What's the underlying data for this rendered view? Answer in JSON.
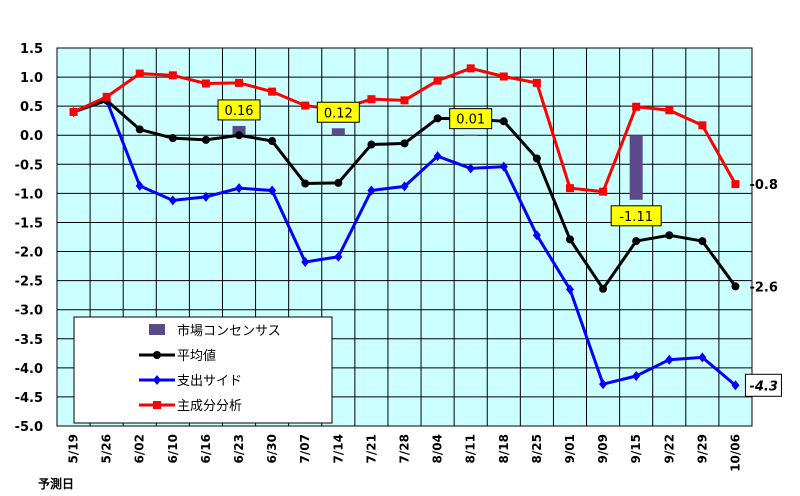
{
  "chart_data": {
    "type": "line",
    "categories": [
      "5/19",
      "5/26",
      "6/02",
      "6/10",
      "6/16",
      "6/23",
      "6/30",
      "7/07",
      "7/14",
      "7/21",
      "7/28",
      "8/04",
      "8/11",
      "8/18",
      "8/25",
      "9/01",
      "9/09",
      "9/15",
      "9/22",
      "9/29",
      "10/06"
    ],
    "xlabel": "予測日",
    "ylim": [
      -5.0,
      1.5
    ],
    "yticks": [
      "1.5",
      "1.0",
      "0.5",
      "0.0",
      "-0.5",
      "-1.0",
      "-1.5",
      "-2.0",
      "-2.5",
      "-3.0",
      "-3.5",
      "-4.0",
      "-4.5",
      "-5.0"
    ],
    "grid": true,
    "legend_position": "bottom-left",
    "colors": {
      "plot_bg": "#ccffff",
      "grid": "#000000"
    },
    "series": [
      {
        "name": "市場コンセンサス",
        "type": "bar",
        "color": "#5b4a8b",
        "values": [
          null,
          null,
          null,
          null,
          null,
          0.16,
          null,
          null,
          0.12,
          null,
          null,
          null,
          0.01,
          null,
          null,
          null,
          null,
          -1.11,
          null,
          null,
          null
        ],
        "labels": [
          {
            "category": "6/23",
            "text": "0.16"
          },
          {
            "category": "7/14",
            "text": "0.12"
          },
          {
            "category": "8/11",
            "text": "0.01"
          },
          {
            "category": "9/15",
            "text": "-1.11"
          }
        ]
      },
      {
        "name": "平均値",
        "type": "line",
        "color": "#000000",
        "marker": "circle",
        "values": [
          0.4,
          0.6,
          0.1,
          -0.05,
          -0.08,
          0.0,
          -0.1,
          -0.83,
          -0.82,
          -0.16,
          -0.14,
          0.29,
          0.28,
          0.24,
          -0.4,
          -1.79,
          -2.64,
          -1.82,
          -1.72,
          -1.82,
          -2.6
        ],
        "end_label": "-2.6"
      },
      {
        "name": "支出サイド",
        "type": "line",
        "color": "#0000ff",
        "marker": "diamond",
        "values": [
          0.4,
          0.6,
          -0.87,
          -1.12,
          -1.06,
          -0.91,
          -0.95,
          -2.18,
          -2.09,
          -0.95,
          -0.88,
          -0.36,
          -0.57,
          -0.54,
          -1.72,
          -2.65,
          -4.28,
          -4.14,
          -3.86,
          -3.82,
          -4.3
        ],
        "end_label": "-4.3"
      },
      {
        "name": "主成分分析",
        "type": "line",
        "color": "#ff0000",
        "marker": "square",
        "values": [
          0.4,
          0.66,
          1.06,
          1.03,
          0.89,
          0.9,
          0.75,
          0.51,
          0.44,
          0.62,
          0.6,
          0.94,
          1.15,
          1.01,
          0.9,
          -0.91,
          -0.97,
          0.49,
          0.43,
          0.17,
          -0.84
        ],
        "end_label": "-0.8"
      }
    ]
  }
}
